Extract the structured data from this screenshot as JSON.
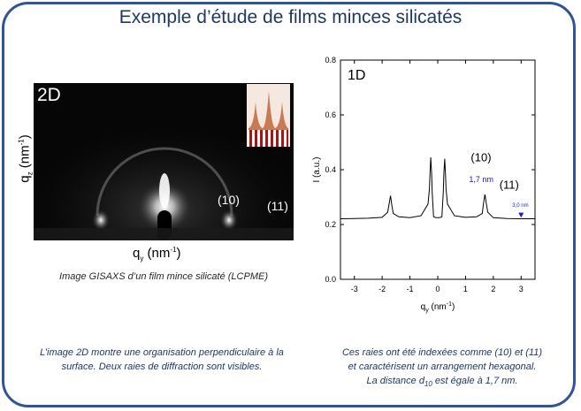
{
  "slide": {
    "title": "Exemple d’étude de films minces silicatés"
  },
  "left": {
    "panel_label": "2D",
    "y_axis": {
      "base": "q",
      "sub": "z",
      "unit_open": " (nm",
      "sup": "-1",
      "unit_close": ")"
    },
    "x_axis": {
      "base": "q",
      "sub": "y",
      "unit_open": " (nm",
      "sup": "-1",
      "unit_close": ")"
    },
    "peak_10": "(10)",
    "peak_11": "(11)",
    "caption": "Image GISAXS d’un film mince silicaté (LCPME)",
    "description": [
      "L’image 2D montre une organisation perpendiculaire à la",
      "surface. Deux raies de diffraction sont visibles."
    ]
  },
  "right": {
    "description_line1": "Ces  raies ont été indexées comme (10) et (11)",
    "description_line2": "et caractérisent un arrangement hexagonal.",
    "description_line3_a": "La distance d",
    "description_line3_sub": "10",
    "description_line3_b": " est égale à 1,7 nm."
  },
  "chart_data": {
    "type": "line",
    "panel_label": "1D",
    "xlabel": {
      "base": "q",
      "sub": "y",
      "unit_open": " (nm",
      "sup": "-1",
      "unit_close": ")"
    },
    "ylabel": "I (a.u.)",
    "xlim": [
      -3.5,
      3.5
    ],
    "ylim": [
      0.0,
      0.8
    ],
    "x_ticks": [
      -3,
      -2,
      -1,
      0,
      1,
      2,
      3
    ],
    "x_tick_labels": [
      "-3",
      "-2",
      "-1",
      "0",
      "1",
      "2",
      "3"
    ],
    "y_ticks": [
      0.0,
      0.2,
      0.4,
      0.6,
      0.8
    ],
    "y_tick_labels": [
      "0.0",
      "0.2",
      "0.4",
      "0.6",
      "0.8"
    ],
    "grid": false,
    "series": [
      {
        "x": [
          -3.5,
          -3.0,
          -2.5,
          -2.0,
          -1.8,
          -1.75,
          -1.7,
          -1.65,
          -1.6,
          -1.4,
          -1.0,
          -0.6,
          -0.35,
          -0.3,
          -0.28,
          -0.25,
          -0.22,
          -0.2,
          -0.15,
          -0.1,
          -0.05,
          0.0,
          0.05,
          0.1,
          0.15,
          0.2,
          0.22,
          0.25,
          0.28,
          0.3,
          0.35,
          0.6,
          1.0,
          1.4,
          1.6,
          1.65,
          1.7,
          1.75,
          1.8,
          2.0,
          2.5,
          3.0,
          3.5
        ],
        "y": [
          0.221,
          0.222,
          0.223,
          0.226,
          0.245,
          0.275,
          0.305,
          0.27,
          0.24,
          0.228,
          0.225,
          0.232,
          0.275,
          0.33,
          0.38,
          0.445,
          0.385,
          0.32,
          0.228,
          0.226,
          0.225,
          0.225,
          0.225,
          0.226,
          0.228,
          0.32,
          0.385,
          0.44,
          0.38,
          0.33,
          0.275,
          0.232,
          0.226,
          0.228,
          0.24,
          0.28,
          0.31,
          0.275,
          0.245,
          0.225,
          0.222,
          0.221,
          0.221
        ]
      }
    ],
    "annotations": {
      "peak_10": "(10)",
      "d_spacing": "1,7 nm",
      "peak_11": "(11)",
      "d_small": "3,0 nm"
    },
    "colors": {
      "annotation": "#1a1ad0",
      "line": "#000000"
    }
  }
}
